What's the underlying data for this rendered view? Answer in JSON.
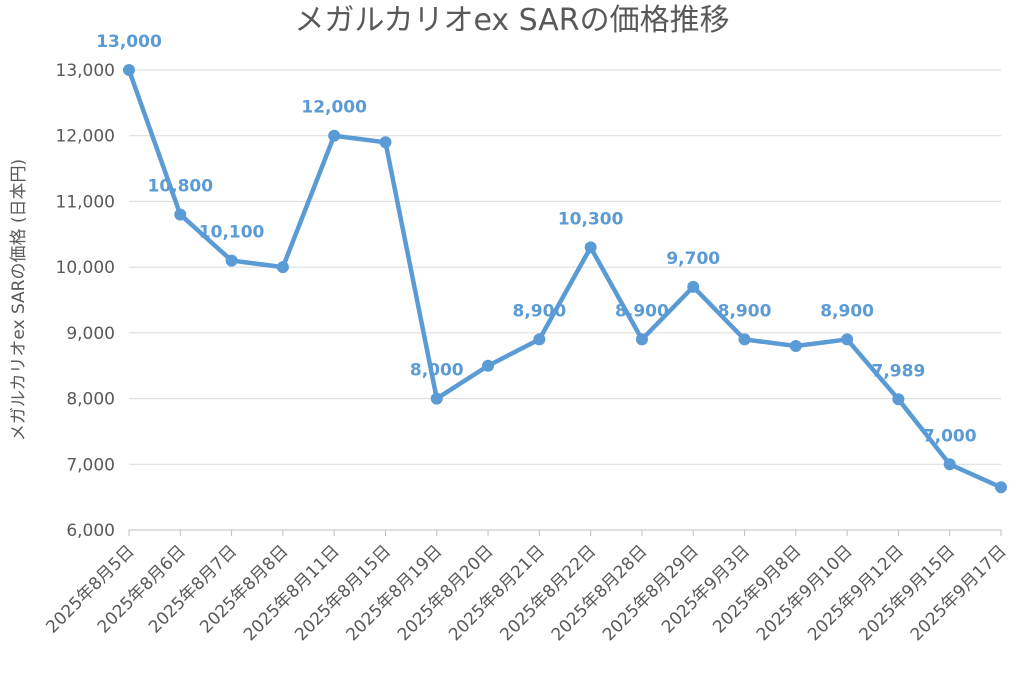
{
  "chart_data": {
    "type": "line",
    "title": "メガルカリオex SARの価格推移",
    "ylabel": "メガルカリオex SARの価格 (日本円)",
    "xlabel": "",
    "categories": [
      "2025年8月5日",
      "2025年8月6日",
      "2025年8月7日",
      "2025年8月8日",
      "2025年8月11日",
      "2025年8月15日",
      "2025年8月19日",
      "2025年8月20日",
      "2025年8月21日",
      "2025年8月22日",
      "2025年8月28日",
      "2025年8月29日",
      "2025年9月3日",
      "2025年9月8日",
      "2025年9月10日",
      "2025年9月12日",
      "2025年9月15日",
      "2025年9月17日"
    ],
    "series": [
      {
        "values": [
          13000,
          10800,
          10100,
          10000,
          12000,
          11900,
          8000,
          8500,
          8900,
          10300,
          8900,
          9700,
          8900,
          8800,
          8900,
          7989,
          7000,
          6650
        ]
      }
    ],
    "data_labels": [
      {
        "index": 0,
        "text": "13,000"
      },
      {
        "index": 1,
        "text": "10,800"
      },
      {
        "index": 2,
        "text": "10,100"
      },
      {
        "index": 4,
        "text": "12,000"
      },
      {
        "index": 6,
        "text": "8,000"
      },
      {
        "index": 8,
        "text": "8,900"
      },
      {
        "index": 9,
        "text": "10,300"
      },
      {
        "index": 10,
        "text": "8,900"
      },
      {
        "index": 11,
        "text": "9,700"
      },
      {
        "index": 12,
        "text": "8,900"
      },
      {
        "index": 14,
        "text": "8,900"
      },
      {
        "index": 15,
        "text": "7,989"
      },
      {
        "index": 16,
        "text": "7,000"
      }
    ],
    "yticks": [
      "6,000",
      "7,000",
      "8,000",
      "9,000",
      "10,000",
      "11,000",
      "12,000",
      "13,000"
    ],
    "ylim": [
      6000,
      13000
    ],
    "grid": true,
    "legend": "none",
    "color": "#5b9bd5"
  }
}
